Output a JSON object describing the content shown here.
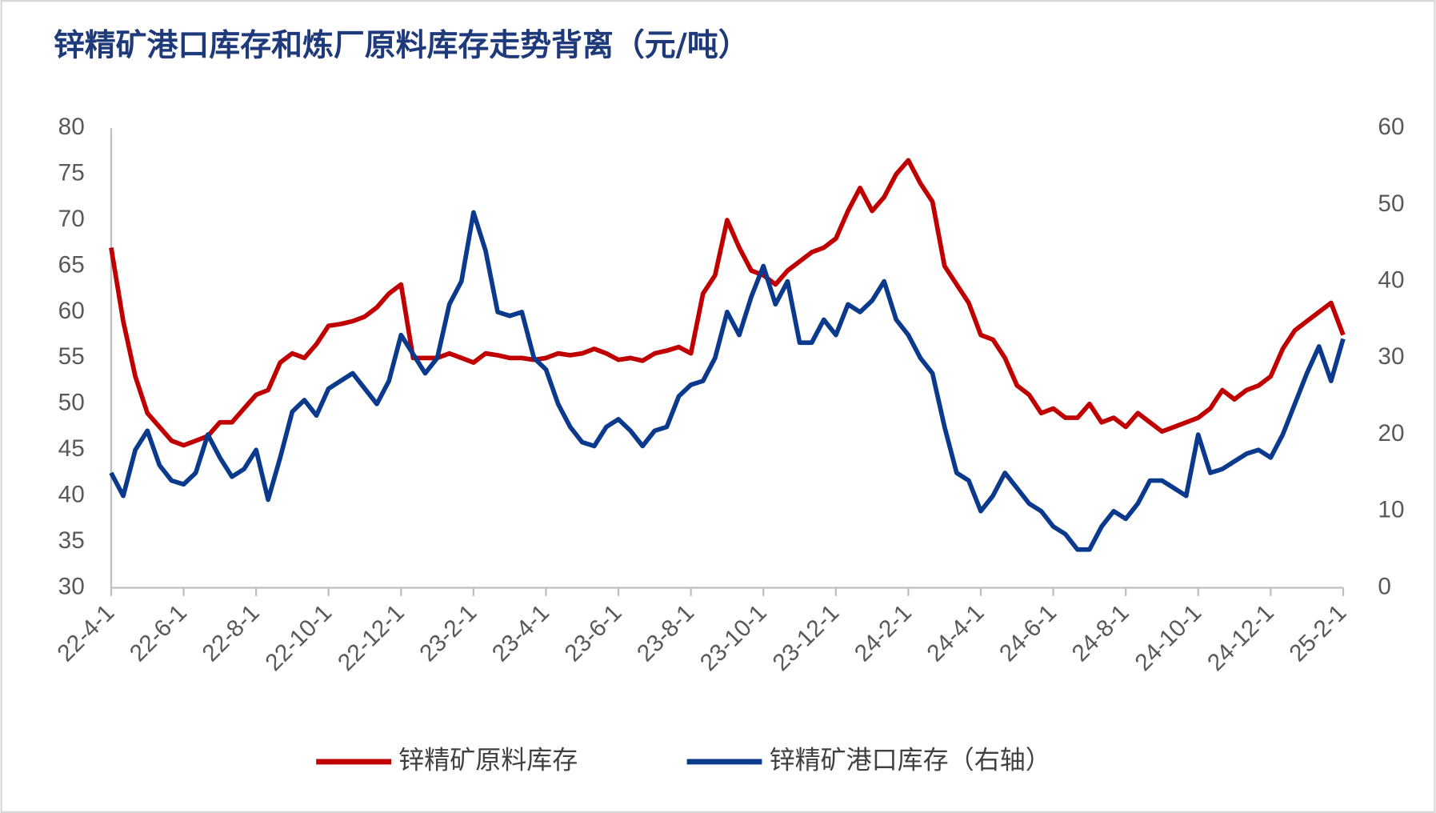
{
  "chart_data": {
    "type": "line",
    "title": "锌精矿港口库存和炼厂原料库存走势背离（元/吨）",
    "categories": [
      "22-4-1",
      null,
      null,
      null,
      null,
      null,
      "22-6-1",
      null,
      null,
      null,
      null,
      null,
      "22-8-1",
      null,
      null,
      null,
      null,
      null,
      "22-10-1",
      null,
      null,
      null,
      null,
      null,
      "22-12-1",
      null,
      null,
      null,
      null,
      null,
      "23-2-1",
      null,
      null,
      null,
      null,
      null,
      "23-4-1",
      null,
      null,
      null,
      null,
      null,
      "23-6-1",
      null,
      null,
      null,
      null,
      null,
      "23-8-1",
      null,
      null,
      null,
      null,
      null,
      "23-10-1",
      null,
      null,
      null,
      null,
      null,
      "23-12-1",
      null,
      null,
      null,
      null,
      null,
      "24-2-1",
      null,
      null,
      null,
      null,
      null,
      "24-4-1",
      null,
      null,
      null,
      null,
      null,
      "24-6-1",
      null,
      null,
      null,
      null,
      null,
      "24-8-1",
      null,
      null,
      null,
      null,
      null,
      "24-10-1",
      null,
      null,
      null,
      null,
      null,
      "24-12-1",
      null,
      null,
      null,
      null,
      null,
      "25-2-1"
    ],
    "series": [
      {
        "name": "锌精矿原料库存",
        "color": "#c00000",
        "axis": "y",
        "values": [
          67,
          59,
          53,
          49,
          47.5,
          46,
          45.5,
          46,
          46.5,
          48,
          48,
          49.5,
          51,
          51.5,
          54.5,
          55.5,
          55,
          56.5,
          58.5,
          58.7,
          59,
          59.5,
          60.5,
          62,
          63,
          55,
          55,
          55,
          55.5,
          55,
          54.5,
          55.5,
          55.3,
          55,
          55,
          54.8,
          55,
          55.5,
          55.3,
          55.5,
          56,
          55.5,
          54.8,
          55,
          54.7,
          55.5,
          55.8,
          56.2,
          55.5,
          62,
          64,
          70,
          67,
          64.5,
          64,
          63,
          64.5,
          65.5,
          66.5,
          67,
          68,
          71,
          73.5,
          71,
          72.5,
          75,
          76.5,
          74,
          72,
          65,
          63,
          61,
          57.5,
          57,
          55,
          52,
          51,
          49,
          49.5,
          48.5,
          48.5,
          50,
          48,
          48.5,
          47.5,
          49,
          48,
          47,
          47.5,
          48,
          48.5,
          49.5,
          51.5,
          50.5,
          51.5,
          52,
          53,
          56,
          58,
          59,
          60,
          61,
          57.5
        ]
      },
      {
        "name": "锌精矿港口库存（右轴）",
        "color": "#0b3a8c",
        "axis": "y2",
        "values": [
          15,
          12,
          18,
          20.5,
          16,
          14,
          13.5,
          15,
          20,
          17,
          14.5,
          15.5,
          18,
          11.5,
          17,
          23,
          24.5,
          22.5,
          26,
          27,
          28,
          26,
          24,
          27,
          33,
          30.5,
          28,
          30,
          37,
          40,
          49,
          44,
          36,
          35.5,
          36,
          30,
          28.5,
          24,
          21,
          19,
          18.5,
          21,
          22,
          20.5,
          18.5,
          20.5,
          21,
          25,
          26.5,
          27,
          30,
          36,
          33,
          38,
          42,
          37,
          40,
          32,
          32,
          35,
          33,
          37,
          36,
          37.5,
          40,
          35,
          33,
          30,
          28,
          21,
          15,
          14,
          10,
          12,
          15,
          13,
          11,
          10,
          8,
          7,
          5,
          5,
          8,
          10,
          9,
          11,
          14,
          14,
          13,
          12,
          20,
          15,
          15.5,
          16.5,
          17.5,
          18,
          17,
          20,
          24,
          28,
          31.5,
          27,
          32.5
        ]
      }
    ],
    "ylim": [
      30,
      80
    ],
    "yticks": [
      30,
      35,
      40,
      45,
      50,
      55,
      60,
      65,
      70,
      75,
      80
    ],
    "y2lim": [
      0,
      60
    ],
    "y2ticks": [
      0,
      10,
      20,
      30,
      40,
      50,
      60
    ],
    "grid": false,
    "legend": "bottom"
  }
}
